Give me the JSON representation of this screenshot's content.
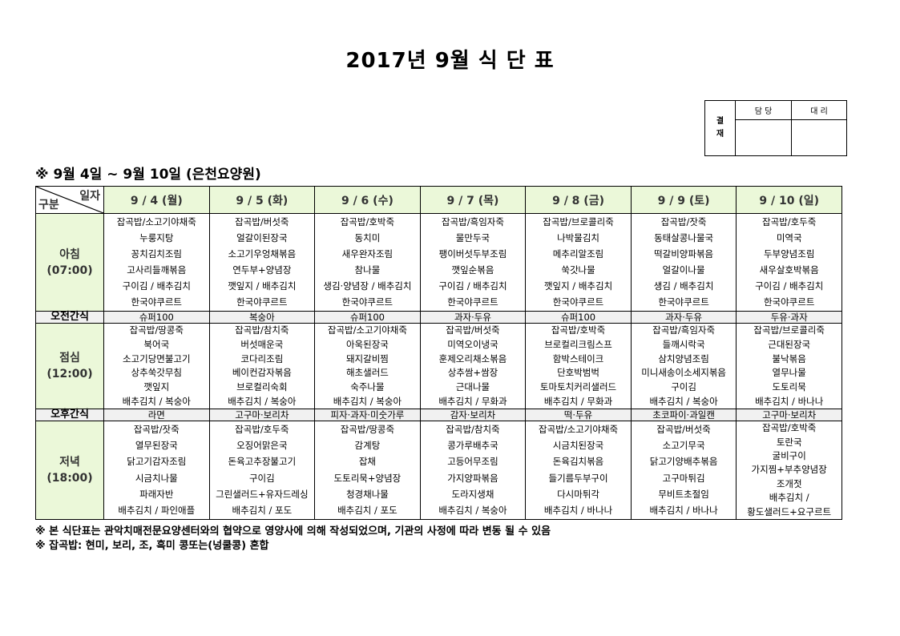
{
  "title": "2017년 9월 식 단 표",
  "approval": {
    "label_top": "결",
    "label_bottom": "재",
    "col1": "담 당",
    "col2": "대 리"
  },
  "period": "※ 9월 4일 ~ 9월 10일 (은천요양원)",
  "table": {
    "corner_top": "일자",
    "corner_bottom": "구분",
    "days": [
      "9 / 4 (월)",
      "9 / 5 (화)",
      "9 / 6 (수)",
      "9 / 7 (목)",
      "9 / 8 (금)",
      "9 / 9 (토)",
      "9 / 10 (일)"
    ],
    "breakfast": {
      "label": "아침",
      "time": "(07:00)",
      "items": [
        [
          "잡곡밥/소고기야채죽",
          "누룽지탕",
          "꽁치김치조림",
          "고사리들깨볶음",
          "구이김 / 배추김치",
          "한국야쿠르트"
        ],
        [
          "잡곡밥/버섯죽",
          "얼갈이된장국",
          "소고기우엉채볶음",
          "연두부+양념장",
          "깻잎지 / 배추김치",
          "한국야쿠르트"
        ],
        [
          "잡곡밥/호박죽",
          "동치미",
          "새우완자조림",
          "참나물",
          "생김·양념장 / 배추김치",
          "한국야쿠르트"
        ],
        [
          "잡곡밥/흑임자죽",
          "물만두국",
          "팽이버섯두부조림",
          "깻잎순볶음",
          "구이김 / 배추김치",
          "한국야쿠르트"
        ],
        [
          "잡곡밥/브로콜리죽",
          "나박물김치",
          "메추리알조림",
          "쑥갓나물",
          "깻잎지 / 배추김치",
          "한국야쿠르트"
        ],
        [
          "잡곡밥/잣죽",
          "동태살콩나물국",
          "떡갈비양파볶음",
          "얼갈이나물",
          "생김 / 배추김치",
          "한국야쿠르트"
        ],
        [
          "잡곡밥/호두죽",
          "미역국",
          "두부양념조림",
          "새우살호박볶음",
          "구이김 / 배추김치",
          "한국야쿠르트"
        ]
      ]
    },
    "morning_snack": {
      "label": "오전간식",
      "items": [
        "슈퍼100",
        "복숭아",
        "슈퍼100",
        "과자·두유",
        "슈퍼100",
        "과자·두유",
        "두유·과자"
      ]
    },
    "lunch": {
      "label": "점심",
      "time": "(12:00)",
      "items": [
        [
          "잡곡밥/땅콩죽",
          "북어국",
          "소고기당면불고기",
          "상추쑥갓무침",
          "깻잎지",
          "배추김치 / 복숭아"
        ],
        [
          "잡곡밥/참치죽",
          "버섯매운국",
          "코다리조림",
          "베이컨감자볶음",
          "브로컬리숙회",
          "배추김치 / 복숭아"
        ],
        [
          "잡곡밥/소고기야채죽",
          "아욱된장국",
          "돼지갈비찜",
          "해초샐러드",
          "숙주나물",
          "배추김치 / 복숭아"
        ],
        [
          "잡곡밥/버섯죽",
          "미역오이냉국",
          "훈제오리채소볶음",
          "상추쌈+쌈장",
          "근대나물",
          "배추김치 / 무화과"
        ],
        [
          "잡곡밥/호박죽",
          "브로컬리크림스프",
          "함박스테이크",
          "단호박범벅",
          "토마토치커리샐러드",
          "배추김치 / 무화과"
        ],
        [
          "잡곡밥/흑임자죽",
          "들깨시락국",
          "삼치양념조림",
          "미니새송이소세지볶음",
          "구이김",
          "배추김치 / 복숭아"
        ],
        [
          "잡곡밥/브로콜리죽",
          "근대된장국",
          "불낙볶음",
          "열무나물",
          "도토리묵",
          "배추김치 / 바나나"
        ]
      ]
    },
    "afternoon_snack": {
      "label": "오후간식",
      "items": [
        "라면",
        "고구마·보리차",
        "피자·과자·미숫가루",
        "감자·보리차",
        "떡·두유",
        "초코파이·과일캔",
        "고구마·보리차"
      ]
    },
    "dinner": {
      "label": "저녁",
      "time": "(18:00)",
      "items": [
        [
          "잡곡밥/잣죽",
          "열무된장국",
          "닭고기감자조림",
          "시금치나물",
          "파래자반",
          "배추김치 / 파인애플"
        ],
        [
          "잡곡밥/호두죽",
          "오징어맑은국",
          "돈육고추장불고기",
          "구이김",
          "그린샐러드+유자드레싱",
          "배추김치 / 포도"
        ],
        [
          "잡곡밥/땅콩죽",
          "감계탕",
          "잡채",
          "도토리묵+양념장",
          "청경채나물",
          "배추김치 / 포도"
        ],
        [
          "잡곡밥/참치죽",
          "콩가루배추국",
          "고등어무조림",
          "가지양파볶음",
          "도라지생채",
          "배추김치 / 복숭아"
        ],
        [
          "잡곡밥/소고기야채죽",
          "시금치된장국",
          "돈육김치볶음",
          "들기름두부구이",
          "다시마튀각",
          "배추김치 / 바나나"
        ],
        [
          "잡곡밥/버섯죽",
          "소고기무국",
          "닭고기양배추볶음",
          "고구마튀김",
          "무비트초절임",
          "배추김치 / 바나나"
        ],
        [
          "잡곡밥/호박죽",
          "토란국",
          "굴비구이",
          "가지찜+부추양념장",
          "조개젓",
          "배추김치 /",
          "황도샐러드+요구르트"
        ]
      ]
    }
  },
  "notes": [
    "※ 본 식단표는 관악치매전문요양센터와의 협약으로 영양사에 의해 작성되었으며, 기관의 사정에 따라 변동 될 수 있음",
    "※ 잡곡밥: 현미, 보리, 조, 흑미 콩또는(넝쿨콩) 혼합"
  ]
}
